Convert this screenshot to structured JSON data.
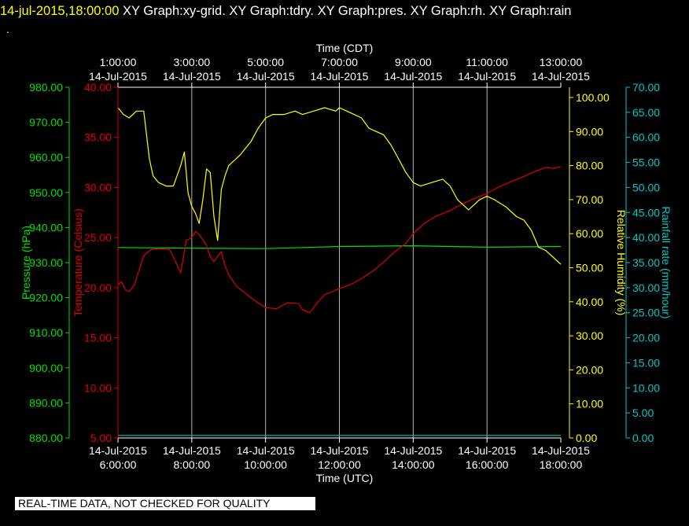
{
  "header": {
    "timestamp": "14-jul-2015,18:00:00",
    "graphs": [
      "XY Graph:xy-grid.",
      "XY Graph:tdry.",
      "XY Graph:pres.",
      "XY Graph:rh.",
      "XY Graph:rain"
    ]
  },
  "footer_note": "REAL-TIME DATA, NOT CHECKED FOR QUALITY",
  "colors": {
    "pressure": "#00e000",
    "temperature": "#e00000",
    "humidity": "#ffff00",
    "rain": "#00c8c8",
    "grid": "#b4b4b4",
    "text": "#ffffff"
  },
  "chart_data": {
    "type": "line",
    "grid": true,
    "x_range_utc_hours": [
      6,
      18
    ],
    "top_axis": {
      "label": "Time (CDT)",
      "ticks": [
        {
          "hour_utc": 6,
          "time": "1:00:00",
          "date": "14-Jul-2015"
        },
        {
          "hour_utc": 8,
          "time": "3:00:00",
          "date": "14-Jul-2015"
        },
        {
          "hour_utc": 10,
          "time": "5:00:00",
          "date": "14-Jul-2015"
        },
        {
          "hour_utc": 12,
          "time": "7:00:00",
          "date": "14-Jul-2015"
        },
        {
          "hour_utc": 14,
          "time": "9:00:00",
          "date": "14-Jul-2015"
        },
        {
          "hour_utc": 16,
          "time": "11:00:00",
          "date": "14-Jul-2015"
        },
        {
          "hour_utc": 18,
          "time": "13:00:00",
          "date": "14-Jul-2015"
        }
      ]
    },
    "bottom_axis": {
      "label": "Time (UTC)",
      "ticks": [
        {
          "hour_utc": 6,
          "date": "14-Jul-2015",
          "time": "6:00:00"
        },
        {
          "hour_utc": 8,
          "date": "14-Jul-2015",
          "time": "8:00:00"
        },
        {
          "hour_utc": 10,
          "date": "14-Jul-2015",
          "time": "10:00:00"
        },
        {
          "hour_utc": 12,
          "date": "14-Jul-2015",
          "time": "12:00:00"
        },
        {
          "hour_utc": 14,
          "date": "14-Jul-2015",
          "time": "14:00:00"
        },
        {
          "hour_utc": 16,
          "date": "14-Jul-2015",
          "time": "16:00:00"
        },
        {
          "hour_utc": 18,
          "date": "14-Jul-2015",
          "time": "18:00:00"
        }
      ]
    },
    "y_axes": [
      {
        "key": "pressure",
        "label": "Pressure (hPa)",
        "range": [
          880,
          980
        ],
        "ticks": [
          "880.00",
          "890.00",
          "900.00",
          "910.00",
          "920.00",
          "930.00",
          "940.00",
          "950.00",
          "960.00",
          "970.00",
          "980.00"
        ]
      },
      {
        "key": "temperature",
        "label": "Temperature (Celsius)",
        "range": [
          5,
          40
        ],
        "ticks": [
          "5.00",
          "10.00",
          "15.00",
          "20.00",
          "25.00",
          "30.00",
          "35.00",
          "40.00"
        ]
      },
      {
        "key": "humidity",
        "label": "Relative Humidity (%)",
        "range": [
          0,
          103
        ],
        "ticks": [
          "0.00",
          "10.00",
          "20.00",
          "30.00",
          "40.00",
          "50.00",
          "60.00",
          "70.00",
          "80.00",
          "90.00",
          "100.00"
        ]
      },
      {
        "key": "rain",
        "label": "Rainfall rate (mm/hour)",
        "range": [
          0,
          70
        ],
        "ticks": [
          "0.00",
          "5.00",
          "10.00",
          "15.00",
          "20.00",
          "25.00",
          "30.00",
          "35.00",
          "40.00",
          "45.00",
          "50.00",
          "55.00",
          "60.00",
          "65.00",
          "70.00"
        ]
      }
    ],
    "series": [
      {
        "key": "temperature",
        "axis": "temperature",
        "x": [
          6,
          6.1,
          6.2,
          6.3,
          6.45,
          6.55,
          6.7,
          6.9,
          7.1,
          7.4,
          7.7,
          7.85,
          8,
          8.1,
          8.2,
          8.3,
          8.4,
          8.5,
          8.6,
          8.7,
          8.8,
          8.9,
          9,
          9.2,
          9.4,
          9.6,
          9.8,
          10,
          10.3,
          10.6,
          10.9,
          11,
          11.2,
          11.4,
          11.6,
          11.8,
          12,
          12.3,
          12.6,
          13,
          13.3,
          13.6,
          13.8,
          14,
          14.3,
          14.6,
          15,
          15.3,
          15.6,
          16,
          16.3,
          16.6,
          17,
          17.3,
          17.6,
          17.8,
          18
        ],
        "y": [
          20.3,
          20.6,
          19.8,
          19.6,
          20.3,
          21.5,
          23.2,
          23.8,
          23.9,
          23.8,
          21.5,
          24.7,
          25,
          25.6,
          25.3,
          24.8,
          24.2,
          23.1,
          22.6,
          23.1,
          23.6,
          22.2,
          21.3,
          20.2,
          19.6,
          19,
          18.5,
          18,
          17.9,
          18.5,
          18.4,
          17.8,
          17.5,
          18.5,
          19.3,
          19.6,
          19.9,
          20.3,
          20.9,
          21.9,
          22.9,
          23.9,
          24.4,
          25.4,
          26.4,
          27.1,
          27.7,
          28.3,
          28.8,
          29.4,
          30,
          30.5,
          31.1,
          31.6,
          32,
          31.9,
          32.1
        ]
      },
      {
        "key": "pressure",
        "axis": "pressure",
        "x": [
          6,
          8,
          10,
          12,
          14,
          16,
          18
        ],
        "y": [
          934.3,
          934.1,
          934.0,
          934.6,
          934.8,
          934.4,
          934.6
        ]
      },
      {
        "key": "humidity",
        "axis": "humidity",
        "x": [
          6,
          6.15,
          6.3,
          6.5,
          6.7,
          6.85,
          6.95,
          7.1,
          7.3,
          7.5,
          7.7,
          7.8,
          7.9,
          8,
          8.1,
          8.2,
          8.3,
          8.4,
          8.5,
          8.6,
          8.7,
          8.8,
          8.9,
          9,
          9.3,
          9.6,
          9.8,
          10,
          10.2,
          10.5,
          10.8,
          11,
          11.3,
          11.6,
          11.9,
          12,
          12.2,
          12.4,
          12.6,
          12.8,
          13,
          13.2,
          13.4,
          13.6,
          13.8,
          14,
          14.2,
          14.5,
          14.8,
          15,
          15.2,
          15.5,
          15.8,
          16,
          16.2,
          16.5,
          16.8,
          17,
          17.2,
          17.4,
          17.6,
          17.8,
          18
        ],
        "y": [
          97,
          95,
          94,
          96,
          96,
          82,
          77,
          75,
          74,
          74,
          80,
          84,
          72,
          68,
          66,
          63,
          70,
          79,
          78,
          65,
          58,
          73,
          77,
          80,
          83,
          87,
          91,
          94,
          95,
          95,
          96,
          95,
          96,
          97,
          96,
          97,
          96,
          95,
          94,
          91,
          90,
          89,
          86,
          82,
          78,
          75,
          74,
          75,
          76,
          74,
          70,
          67,
          70,
          71,
          70,
          68,
          65,
          64,
          61,
          56,
          55,
          53,
          51
        ]
      },
      {
        "key": "rain",
        "axis": "rain",
        "x": [
          6,
          18
        ],
        "y": [
          0.5,
          0.5
        ]
      }
    ]
  }
}
